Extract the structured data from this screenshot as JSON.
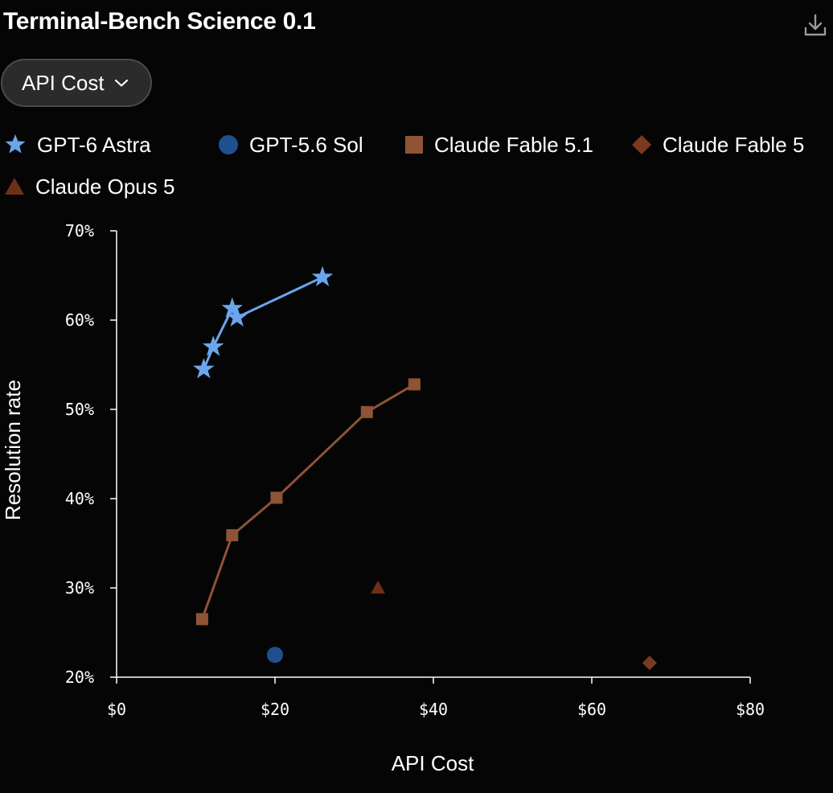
{
  "title": "Terminal-Bench Science 0.1",
  "toolbar": {
    "download_icon": "download-icon"
  },
  "dropdown": {
    "selected": "API Cost",
    "icon": "chevron-down-icon"
  },
  "legend": [
    {
      "name": "GPT-6 Astra",
      "marker": "star",
      "color": "#6aa6ec"
    },
    {
      "name": "GPT-5.6 Sol",
      "marker": "circle",
      "color": "#1f4f8f"
    },
    {
      "name": "Claude Fable 5.1",
      "marker": "square",
      "color": "#8f5335"
    },
    {
      "name": "Claude Fable 5",
      "marker": "diamond",
      "color": "#7a3a1f"
    },
    {
      "name": "Claude Opus 5",
      "marker": "triangle",
      "color": "#6e2f17"
    }
  ],
  "chart_data": {
    "type": "scatter",
    "xlabel": "API Cost",
    "ylabel": "Resolution rate",
    "xlim": [
      0,
      80
    ],
    "ylim": [
      20,
      70
    ],
    "x_ticks": [
      0,
      20,
      40,
      60,
      80
    ],
    "x_tick_labels": [
      "$0",
      "$20",
      "$40",
      "$60",
      "$80"
    ],
    "y_ticks": [
      20,
      30,
      40,
      50,
      60,
      70
    ],
    "y_tick_labels": [
      "20%",
      "30%",
      "40%",
      "50%",
      "60%",
      "70%"
    ],
    "grid": false,
    "legend_position": "top",
    "series": [
      {
        "name": "GPT-6 Astra",
        "marker": "star",
        "color": "#6aa6ec",
        "connected": true,
        "points": [
          [
            11.0,
            54.5
          ],
          [
            12.2,
            57.0
          ],
          [
            14.6,
            61.3
          ],
          [
            15.2,
            60.3
          ],
          [
            26.0,
            64.8
          ]
        ]
      },
      {
        "name": "GPT-5.6 Sol",
        "marker": "circle",
        "color": "#1f4f8f",
        "connected": false,
        "points": [
          [
            20.0,
            22.5
          ]
        ]
      },
      {
        "name": "Claude Fable 5.1",
        "marker": "square",
        "color": "#8f5335",
        "connected": true,
        "points": [
          [
            10.8,
            26.5
          ],
          [
            14.6,
            35.9
          ],
          [
            20.2,
            40.1
          ],
          [
            31.6,
            49.7
          ],
          [
            37.6,
            52.8
          ]
        ]
      },
      {
        "name": "Claude Fable 5",
        "marker": "diamond",
        "color": "#7a3a1f",
        "connected": false,
        "points": [
          [
            67.3,
            21.6
          ]
        ]
      },
      {
        "name": "Claude Opus 5",
        "marker": "triangle",
        "color": "#6e2f17",
        "connected": false,
        "points": [
          [
            33.0,
            30.0
          ]
        ]
      }
    ]
  }
}
